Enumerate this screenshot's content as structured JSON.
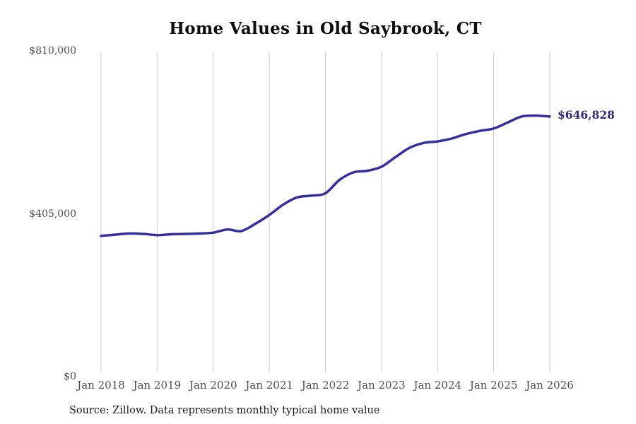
{
  "chart": {
    "colors": {
      "line": "#342f9e",
      "end_label": "#2c2a7d",
      "grid": "#cbcbcb",
      "tick_text": "#4f4f4f",
      "title_text": "#0d0d0d",
      "source_text": "#1a1a1a"
    }
  },
  "chart_data": {
    "type": "line",
    "title": "Home Values in Old Saybrook, CT",
    "source": "Source: Zillow. Data represents monthly typical home value",
    "xlabel": "",
    "ylabel": "",
    "ylim": [
      0,
      810000
    ],
    "grid": "vertical-only",
    "legend": "none",
    "x": [
      "Jan 2018",
      "Apr 2018",
      "Jul 2018",
      "Oct 2018",
      "Jan 2019",
      "Apr 2019",
      "Jul 2019",
      "Oct 2019",
      "Jan 2020",
      "Apr 2020",
      "Jul 2020",
      "Oct 2020",
      "Jan 2021",
      "Apr 2021",
      "Jul 2021",
      "Oct 2021",
      "Jan 2022",
      "Apr 2022",
      "Jul 2022",
      "Oct 2022",
      "Jan 2023",
      "Apr 2023",
      "Jul 2023",
      "Oct 2023",
      "Jan 2024",
      "Apr 2024",
      "Jul 2024",
      "Oct 2024",
      "Jan 2025",
      "Apr 2025",
      "Jul 2025",
      "Oct 2025",
      "Jan 2026"
    ],
    "series": [
      {
        "name": "Typical home value",
        "values": [
          350000,
          353000,
          356000,
          355000,
          352000,
          354000,
          355000,
          356000,
          358000,
          366000,
          362000,
          380000,
          402000,
          428000,
          446000,
          450000,
          456000,
          489000,
          508000,
          512000,
          522000,
          546000,
          569000,
          581000,
          585000,
          592000,
          603000,
          611000,
          617000,
          632000,
          647000,
          649000,
          646828
        ]
      }
    ],
    "x_ticks": [
      "Jan 2018",
      "Jan 2019",
      "Jan 2020",
      "Jan 2021",
      "Jan 2022",
      "Jan 2023",
      "Jan 2024",
      "Jan 2025",
      "Jan 2026"
    ],
    "y_ticks": [
      {
        "value": 0,
        "label": "$0"
      },
      {
        "value": 405000,
        "label": "$405,000"
      },
      {
        "value": 810000,
        "label": "$810,000"
      }
    ],
    "annotation": {
      "text": "$646,828",
      "value": 646828
    }
  }
}
